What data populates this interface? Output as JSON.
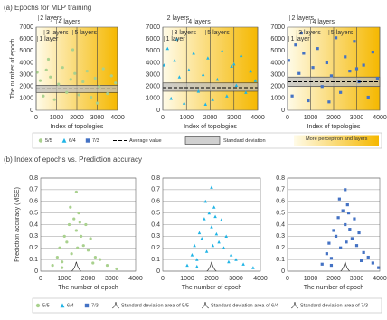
{
  "figure": {
    "panel_a_title": "(a) Epochs for MLP training",
    "panel_b_title": "(b) Index of epochs vs. Prediction accuracy",
    "legend_a": [
      "Average value",
      "Standard deviation",
      "More perceptron and layers"
    ],
    "legend_b": [
      "Standard deviation area of 5/5",
      "Standard deviation area of 6/4",
      "Standard deviation area of 7/3"
    ]
  },
  "chart_data": [
    {
      "type": "scatter",
      "x_label": "Index of topologies",
      "y_label": "The number of epoch",
      "xlim": [
        0,
        4000
      ],
      "ylim": [
        0,
        7000
      ],
      "xticks": [
        0,
        1000,
        2000,
        3000,
        4000
      ],
      "yticks": [
        0,
        1000,
        2000,
        3000,
        4000,
        5000,
        6000,
        7000
      ],
      "xgrid": true,
      "average_value": 1800,
      "standard_deviation": [
        1500,
        2100
      ],
      "annotations": [
        "2 layers",
        "4 layers",
        "3 layers",
        "5 layers",
        "1 layer"
      ],
      "series": [
        {
          "name": "5/5",
          "color": "#a9d18e",
          "marker": "circle",
          "x": [
            50,
            200,
            350,
            500,
            700,
            900,
            1100,
            1300,
            1500,
            1700,
            1900,
            2100,
            2300,
            2500,
            2700,
            2900,
            3100,
            3300,
            3500,
            3700,
            3900,
            600,
            1800,
            3000
          ],
          "values": [
            3200,
            2500,
            1200,
            3400,
            2800,
            900,
            2200,
            3600,
            1500,
            2600,
            3100,
            1300,
            2400,
            3300,
            1100,
            2700,
            2000,
            3500,
            1400,
            2900,
            2300,
            4300,
            5100,
            600
          ]
        }
      ]
    },
    {
      "type": "scatter",
      "x_label": "Index of topologies",
      "xlim": [
        0,
        4000
      ],
      "ylim": [
        0,
        7000
      ],
      "xticks": [
        0,
        1000,
        2000,
        3000,
        4000
      ],
      "yticks": [
        0,
        1000,
        2000,
        3000,
        4000,
        5000,
        6000,
        7000
      ],
      "xgrid": true,
      "average_value": 1900,
      "standard_deviation": [
        1600,
        2300
      ],
      "annotations": [
        "2 layers",
        "4 layers",
        "3 layers",
        "5 layers",
        "1 layer"
      ],
      "series": [
        {
          "name": "6/4",
          "color": "#1fb4e6",
          "marker": "triangle",
          "x": [
            50,
            200,
            350,
            500,
            700,
            900,
            1100,
            1300,
            1500,
            1700,
            1900,
            2100,
            2300,
            2500,
            2700,
            2900,
            3100,
            3300,
            3500,
            3700,
            3900,
            600,
            1800,
            3000
          ],
          "values": [
            3800,
            5200,
            1000,
            4200,
            2800,
            600,
            3400,
            4800,
            1600,
            3000,
            4400,
            900,
            2600,
            5000,
            1200,
            3700,
            2100,
            4600,
            1500,
            3300,
            2500,
            6000,
            500,
            3900
          ]
        }
      ]
    },
    {
      "type": "scatter",
      "x_label": "Index of topologies",
      "xlim": [
        0,
        4000
      ],
      "ylim": [
        0,
        7000
      ],
      "xticks": [
        0,
        1000,
        2000,
        3000,
        4000
      ],
      "yticks": [
        0,
        1000,
        2000,
        3000,
        4000,
        5000,
        6000,
        7000
      ],
      "xgrid": true,
      "average_value": 2400,
      "standard_deviation": [
        2000,
        2800
      ],
      "annotations": [
        "2 layers",
        "4 layers",
        "3 layers",
        "5 layers",
        "1 layer"
      ],
      "series": [
        {
          "name": "7/3",
          "color": "#4472c4",
          "marker": "square",
          "x": [
            50,
            200,
            350,
            500,
            700,
            900,
            1100,
            1300,
            1500,
            1700,
            1900,
            2100,
            2300,
            2500,
            2700,
            2900,
            3100,
            3300,
            3500,
            3700,
            3900,
            600,
            1800,
            3000
          ],
          "values": [
            4200,
            1200,
            5500,
            3100,
            4800,
            800,
            3600,
            5200,
            2000,
            4000,
            2900,
            6100,
            1500,
            4500,
            3300,
            5800,
            2400,
            3800,
            1100,
            4900,
            2700,
            6500,
            700,
            3500
          ]
        }
      ]
    },
    {
      "type": "scatter",
      "x_label": "The number of epoch",
      "y_label": "Prediction accuracy (MSE)",
      "xlim": [
        0,
        4000
      ],
      "ylim": [
        0,
        0.8
      ],
      "xticks": [
        0,
        1000,
        2000,
        3000,
        4000
      ],
      "yticks": [
        0,
        0.1,
        0.2,
        0.3,
        0.4,
        0.5,
        0.6,
        0.7,
        0.8
      ],
      "ygrid": true,
      "std_area": {
        "x": [
          1300,
          1700
        ],
        "height": 0.08
      },
      "series": [
        {
          "name": "5/5",
          "color": "#a9d18e",
          "marker": "circle",
          "x": [
            500,
            700,
            800,
            900,
            1000,
            1100,
            1200,
            1300,
            1400,
            1500,
            1500,
            1600,
            1700,
            1800,
            1900,
            2000,
            2100,
            2300,
            2500,
            2800,
            3200,
            1250,
            1650,
            1550,
            900,
            2200
          ],
          "values": [
            0.05,
            0.12,
            0.2,
            0.08,
            0.3,
            0.25,
            0.4,
            0.15,
            0.45,
            0.68,
            0.35,
            0.5,
            0.3,
            0.22,
            0.4,
            0.18,
            0.28,
            0.12,
            0.1,
            0.05,
            0.02,
            0.55,
            0.42,
            0.2,
            0.03,
            0.07
          ]
        }
      ]
    },
    {
      "type": "scatter",
      "x_label": "The number of epoch",
      "xlim": [
        0,
        4000
      ],
      "ylim": [
        0,
        0.8
      ],
      "xticks": [
        0,
        1000,
        2000,
        3000,
        4000
      ],
      "yticks": [
        0,
        0.1,
        0.2,
        0.3,
        0.4,
        0.5,
        0.6,
        0.7,
        0.8
      ],
      "ygrid": true,
      "std_area": {
        "x": [
          1800,
          2200
        ],
        "height": 0.08
      },
      "series": [
        {
          "name": "6/4",
          "color": "#1fb4e6",
          "marker": "triangle",
          "x": [
            1000,
            1200,
            1300,
            1400,
            1500,
            1600,
            1700,
            1800,
            1900,
            2000,
            2000,
            2100,
            2200,
            2300,
            2400,
            2500,
            2600,
            2800,
            3000,
            3300,
            3700,
            1750,
            2150,
            2050,
            1400,
            2700
          ],
          "values": [
            0.05,
            0.14,
            0.22,
            0.1,
            0.33,
            0.28,
            0.45,
            0.17,
            0.5,
            0.72,
            0.38,
            0.55,
            0.32,
            0.25,
            0.44,
            0.2,
            0.3,
            0.14,
            0.1,
            0.06,
            0.03,
            0.6,
            0.47,
            0.22,
            0.04,
            0.08
          ]
        }
      ]
    },
    {
      "type": "scatter",
      "x_label": "The number of epoch",
      "xlim": [
        0,
        4000
      ],
      "ylim": [
        0,
        0.8
      ],
      "xticks": [
        0,
        1000,
        2000,
        3000,
        4000
      ],
      "yticks": [
        0,
        0.1,
        0.2,
        0.3,
        0.4,
        0.5,
        0.6,
        0.7,
        0.8
      ],
      "ygrid": true,
      "std_area": {
        "x": [
          2300,
          2700
        ],
        "height": 0.08
      },
      "series": [
        {
          "name": "7/3",
          "color": "#4472c4",
          "marker": "square",
          "x": [
            1500,
            1700,
            1800,
            1900,
            2000,
            2100,
            2200,
            2300,
            2400,
            2500,
            2500,
            2600,
            2700,
            2800,
            2900,
            3000,
            3100,
            3300,
            3500,
            3700,
            3950,
            2250,
            2650,
            2550,
            1900,
            3200
          ],
          "values": [
            0.06,
            0.15,
            0.24,
            0.11,
            0.35,
            0.3,
            0.46,
            0.2,
            0.52,
            0.7,
            0.4,
            0.57,
            0.36,
            0.28,
            0.45,
            0.22,
            0.33,
            0.16,
            0.12,
            0.07,
            0.03,
            0.62,
            0.5,
            0.25,
            0.05,
            0.09
          ]
        }
      ]
    }
  ]
}
